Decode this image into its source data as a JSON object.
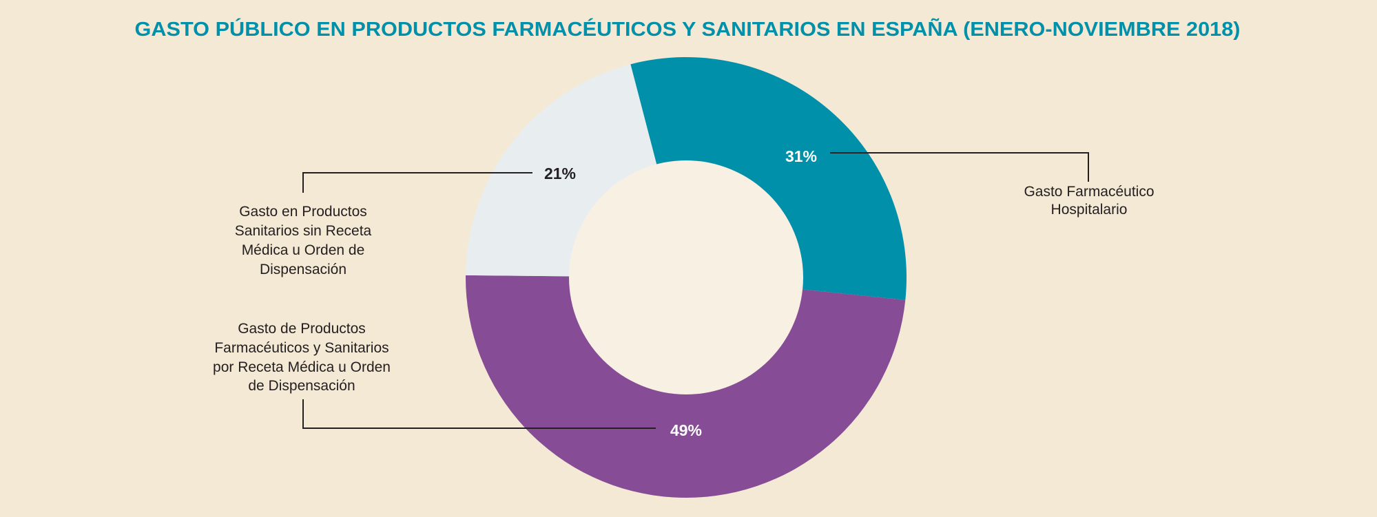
{
  "chart_data": {
    "type": "pie",
    "variant": "donut",
    "title": "GASTO PÚBLICO EN PRODUCTOS FARMACÉUTICOS Y SANITARIOS EN ESPAÑA (ENERO-NOVIEMBRE 2018)",
    "slices": [
      {
        "label": [
          "Gasto Farmacéutico",
          "Hospitalario"
        ],
        "value": 31,
        "value_label": "31%",
        "color": "#0090aa",
        "label_color": "#ffffff"
      },
      {
        "label": [
          "Gasto de Productos",
          "Farmacéuticos y Sanitarios",
          "por Receta Médica u Orden",
          "de Dispensación"
        ],
        "value": 49,
        "value_label": "49%",
        "color": "#864c95",
        "label_color": "#ffffff"
      },
      {
        "label": [
          "Gasto en Productos",
          "Sanitarios sin Receta",
          "Médica u Orden de",
          "Dispensación"
        ],
        "value": 21,
        "value_label": "21%",
        "color": "#e8edf0",
        "label_color": "#231f20"
      }
    ],
    "colors": {
      "background": "#f4e9d5",
      "hole": "#f8f0e3",
      "title": "#0090aa"
    }
  }
}
